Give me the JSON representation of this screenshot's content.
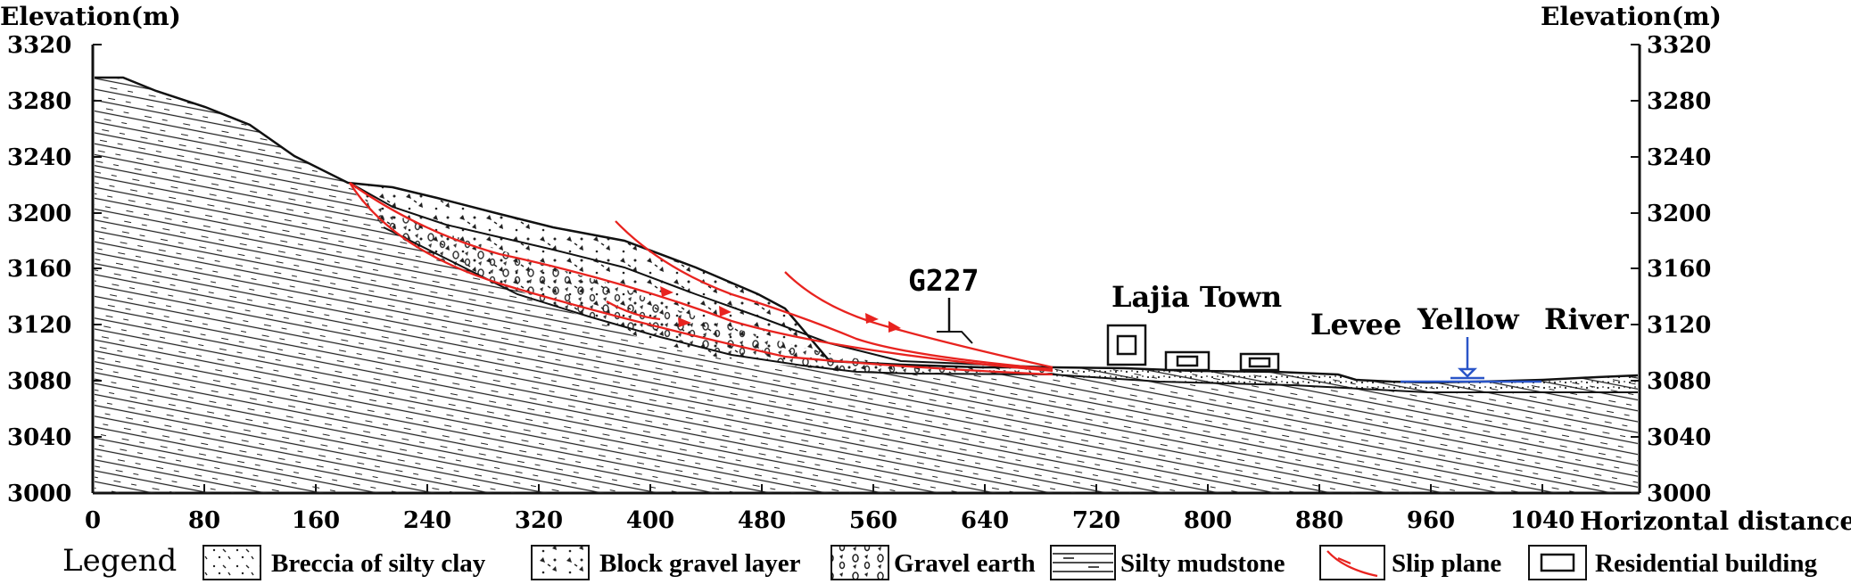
{
  "axes": {
    "y_title_left": "Elevation(m)",
    "y_title_right": "Elevation(m)",
    "x_title": "Horizontal distance(m)",
    "y_ticks": [
      "3320",
      "3280",
      "3240",
      "3200",
      "3160",
      "3120",
      "3080",
      "3040",
      "3000"
    ],
    "x_ticks": [
      "0",
      "80",
      "160",
      "240",
      "320",
      "400",
      "480",
      "560",
      "640",
      "720",
      "800",
      "880",
      "960",
      "1040"
    ]
  },
  "annotations": {
    "road": "G227",
    "town": "Lajia Town",
    "levee": "Levee",
    "yellow": "Yellow",
    "river": "River"
  },
  "legend": {
    "title": "Legend",
    "items": [
      {
        "label": "Breccia of silty clay"
      },
      {
        "label": "Block gravel layer"
      },
      {
        "label": "Gravel earth"
      },
      {
        "label": "Silty mudstone"
      },
      {
        "label": "Slip plane"
      },
      {
        "label": "Residential building"
      }
    ]
  },
  "colors": {
    "line": "#111111",
    "slip_plane": "#e8231f",
    "water": "#2a55c8"
  }
}
